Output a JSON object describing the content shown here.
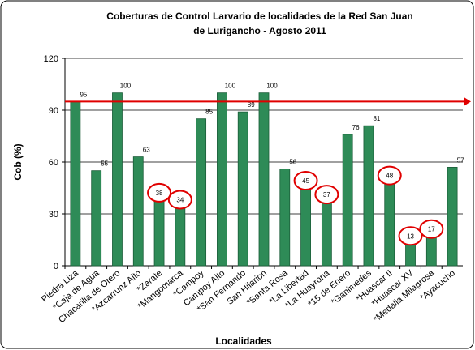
{
  "chart_data": {
    "type": "bar",
    "title": [
      "Coberturas de Control Larvario de localidades de la Red San Juan",
      "de Lurigancho - Agosto 2011"
    ],
    "x_label": "Localidades",
    "y_label": "Cob (%)",
    "categories": [
      "Piedra Liza",
      "*Caja de Agua",
      "Chacarilla de Otero",
      "*Azcarrunz Alto",
      "*Zarate",
      "*Mangomarca",
      "*Campoy",
      "Campoy Alto",
      "*San Fernando",
      "San Hilarion",
      "*Santa Rosa",
      "*La Libertad",
      "*La Huayrona",
      "*15 de Enero",
      "*Ganimedes",
      "*Huascar II",
      "*Huascar XV",
      "*Medalla Milagrosa",
      "*Ayacucho"
    ],
    "values": [
      95,
      55,
      100,
      63,
      38,
      34,
      85,
      100,
      89,
      100,
      56,
      45,
      37,
      76,
      81,
      48,
      13,
      17,
      57
    ],
    "color": "#2e8b57",
    "ylim": [
      0,
      120
    ],
    "yticks": [
      0,
      30,
      60,
      90,
      120
    ],
    "grid": true,
    "reference_line": 95,
    "reference_color": "#e00000",
    "highlighted": [
      4,
      5,
      11,
      12,
      15,
      16,
      17
    ],
    "highlight_color": "#e00000"
  }
}
